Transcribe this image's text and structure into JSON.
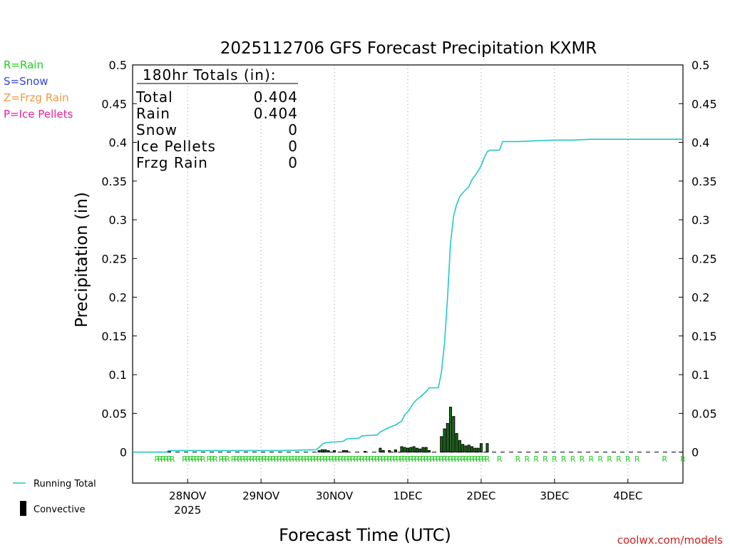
{
  "chart_data": {
    "type": "bar+line",
    "title": "2025112706 GFS Forecast Precipitation KXMR",
    "xlabel": "Forecast Time (UTC)",
    "ylabel": "Precipitation (in)",
    "ylim": [
      -0.04,
      0.5
    ],
    "yticks": [
      0,
      0.05,
      0.1,
      0.15,
      0.2,
      0.25,
      0.3,
      0.35,
      0.4,
      0.45,
      0.5
    ],
    "ytick_labels": [
      "0",
      "0.05",
      "0.1",
      "0.15",
      "0.2",
      "0.25",
      "0.3",
      "0.35",
      "0.4",
      "0.45",
      "0.5"
    ],
    "x_unit": "hours since 2025-11-27 06Z",
    "xlim": [
      0,
      180
    ],
    "xticks": [
      {
        "x": 18,
        "label": "28NOV",
        "sublabel": "2025"
      },
      {
        "x": 42,
        "label": "29NOV",
        "sublabel": ""
      },
      {
        "x": 66,
        "label": "30NOV",
        "sublabel": ""
      },
      {
        "x": 90,
        "label": "1DEC",
        "sublabel": ""
      },
      {
        "x": 114,
        "label": "2DEC",
        "sublabel": ""
      },
      {
        "x": 138,
        "label": "3DEC",
        "sublabel": ""
      },
      {
        "x": 162,
        "label": "4DEC",
        "sublabel": ""
      }
    ],
    "legend_types": [
      {
        "label": "R=Rain",
        "color": "#22cc22"
      },
      {
        "label": "S=Snow",
        "color": "#3344dd"
      },
      {
        "label": "Z=Frzg Rain",
        "color": "#ee9944"
      },
      {
        "label": "P=Ice Pellets",
        "color": "#ee2299"
      }
    ],
    "legend_series": [
      {
        "label": "Running Total",
        "color": "#22c8c8",
        "kind": "line"
      },
      {
        "label": "Convective",
        "color": "#000000",
        "kind": "bar"
      }
    ],
    "totals": {
      "header": "180hr Totals (in):",
      "rows": [
        {
          "label": "Total",
          "value": "0.404"
        },
        {
          "label": "Rain",
          "value": "0.404"
        },
        {
          "label": "Snow",
          "value": "0"
        },
        {
          "label": "Ice Pellets",
          "value": "0"
        },
        {
          "label": "Frzg Rain",
          "value": "0"
        }
      ]
    },
    "running_total": {
      "name": "Running Total",
      "x": [
        0,
        11,
        12,
        24,
        48,
        60,
        61,
        62,
        63,
        65,
        66,
        69,
        70,
        74,
        75,
        80,
        81,
        83,
        84,
        86,
        88,
        89,
        90,
        91,
        92,
        93,
        94,
        96,
        97,
        100,
        101,
        102,
        103,
        104,
        105,
        106,
        107,
        108,
        110,
        111,
        112,
        113,
        114,
        115,
        116,
        117,
        118,
        120,
        121,
        124,
        126,
        132,
        138,
        144,
        150,
        156,
        168,
        180
      ],
      "values": [
        0,
        0,
        0.002,
        0.002,
        0.002,
        0.003,
        0.006,
        0.01,
        0.012,
        0.013,
        0.013,
        0.014,
        0.017,
        0.018,
        0.021,
        0.022,
        0.026,
        0.03,
        0.032,
        0.035,
        0.04,
        0.048,
        0.052,
        0.058,
        0.064,
        0.068,
        0.071,
        0.078,
        0.083,
        0.083,
        0.103,
        0.14,
        0.2,
        0.27,
        0.305,
        0.32,
        0.33,
        0.335,
        0.343,
        0.352,
        0.357,
        0.363,
        0.37,
        0.38,
        0.388,
        0.39,
        0.39,
        0.39,
        0.401,
        0.401,
        0.401,
        0.402,
        0.403,
        0.403,
        0.404,
        0.404,
        0.404,
        0.404
      ]
    },
    "bars": {
      "name": "Convective",
      "x": [
        12,
        61,
        62,
        63,
        64,
        66,
        69,
        70,
        76,
        81,
        82,
        84,
        86,
        88,
        89,
        90,
        91,
        92,
        93,
        94,
        95,
        96,
        97,
        101,
        102,
        103,
        104,
        105,
        106,
        107,
        108,
        109,
        110,
        111,
        112,
        113,
        114,
        116
      ],
      "values": [
        0.002,
        0.002,
        0.003,
        0.003,
        0.002,
        0.002,
        0.002,
        0.002,
        0.001,
        0.005,
        0.002,
        0.002,
        0.003,
        0.007,
        0.006,
        0.005,
        0.006,
        0.007,
        0.005,
        0.004,
        0.006,
        0.006,
        0.002,
        0.02,
        0.03,
        0.037,
        0.058,
        0.046,
        0.024,
        0.015,
        0.01,
        0.008,
        0.009,
        0.007,
        0.005,
        0.005,
        0.011,
        0.011
      ]
    },
    "precip_type_markers": {
      "label": "R",
      "color": "#22cc22",
      "x": [
        8,
        9,
        10,
        11,
        12,
        13,
        17,
        18,
        19,
        20,
        21,
        22,
        23,
        25,
        26,
        27,
        29,
        30,
        31,
        33,
        34,
        35,
        36,
        37,
        38,
        39,
        40,
        41,
        42,
        43,
        44,
        45,
        46,
        47,
        48,
        49,
        50,
        51,
        52,
        53,
        54,
        55,
        56,
        57,
        58,
        59,
        60,
        61,
        62,
        63,
        64,
        65,
        66,
        67,
        68,
        69,
        70,
        71,
        72,
        73,
        74,
        75,
        76,
        77,
        78,
        79,
        80,
        81,
        82,
        83,
        84,
        85,
        86,
        87,
        88,
        89,
        90,
        91,
        92,
        93,
        94,
        95,
        96,
        97,
        98,
        99,
        100,
        101,
        102,
        103,
        104,
        105,
        106,
        107,
        108,
        109,
        110,
        111,
        112,
        113,
        114,
        115,
        116,
        120,
        126,
        129,
        132,
        135,
        138,
        141,
        144,
        147,
        150,
        153,
        156,
        159,
        162,
        165,
        174,
        180
      ]
    }
  },
  "footer": {
    "watermark": "coolwx.com/models"
  }
}
